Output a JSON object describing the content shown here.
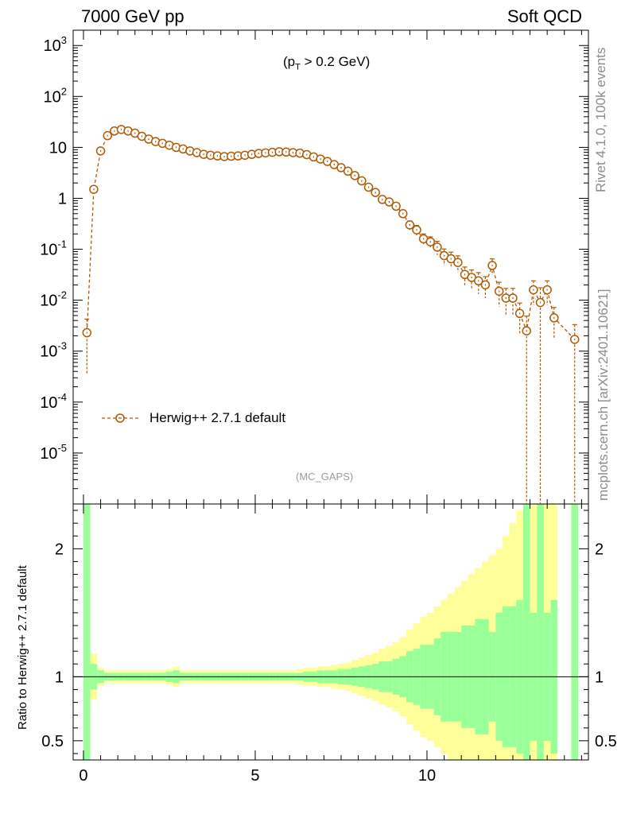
{
  "header": {
    "left": "7000 GeV pp",
    "right": "Soft QCD"
  },
  "side_labels": {
    "top": "Rivet 4.1.0,  100k events",
    "bottom": "mcplots.cern.ch [arXiv:2401.10621]"
  },
  "annotations": {
    "cut_prefix": "(p",
    "cut_sub": "T",
    "cut_suffix": " > 0.2 GeV)",
    "analysis_tag": "(MC_GAPS)"
  },
  "colors": {
    "mc": "#b35900",
    "band_outer": "#ffff99",
    "band_inner": "#99ff99"
  },
  "chart_data": [
    {
      "type": "line",
      "panel": "main",
      "xlabel": "",
      "ylabel": "",
      "xlim": [
        -0.3,
        14.7
      ],
      "ylim_log": [
        -6,
        3.3
      ],
      "ytick_labels": {
        "3": "10^3",
        "2": "10^2",
        "1": "10",
        "0": "1",
        "-1": "10^-1",
        "-2": "10^-2",
        "-3": "10^-3",
        "-4": "10^-4",
        "-5": "10^-5"
      },
      "legend_position": "bottom-left",
      "series": [
        {
          "name": "Herwig++ 2.7.1 default",
          "style": "dashed, open circles, error bars",
          "x": [
            0.1,
            0.3,
            0.5,
            0.7,
            0.9,
            1.1,
            1.3,
            1.5,
            1.7,
            1.9,
            2.1,
            2.3,
            2.5,
            2.7,
            2.9,
            3.1,
            3.3,
            3.5,
            3.7,
            3.9,
            4.1,
            4.3,
            4.5,
            4.7,
            4.9,
            5.1,
            5.3,
            5.5,
            5.7,
            5.9,
            6.1,
            6.3,
            6.5,
            6.7,
            6.9,
            7.1,
            7.3,
            7.5,
            7.7,
            7.9,
            8.1,
            8.3,
            8.5,
            8.7,
            8.9,
            9.1,
            9.3,
            9.5,
            9.7,
            9.9,
            10.1,
            10.3,
            10.5,
            10.7,
            10.9,
            11.1,
            11.3,
            11.5,
            11.7,
            11.9,
            12.1,
            12.3,
            12.5,
            12.7,
            12.9,
            13.1,
            13.3,
            13.5,
            13.7,
            14.3
          ],
          "values": [
            0.0023,
            1.5,
            8.5,
            17,
            21,
            22.5,
            21,
            19,
            16.5,
            14.5,
            13,
            12,
            11,
            10,
            9.3,
            8.5,
            7.9,
            7.3,
            7.0,
            6.8,
            6.6,
            6.7,
            6.8,
            7.0,
            7.3,
            7.6,
            7.8,
            8.0,
            8.2,
            8.1,
            7.9,
            7.7,
            7.2,
            6.5,
            5.9,
            5.3,
            4.6,
            4.0,
            3.4,
            2.8,
            2.2,
            1.65,
            1.3,
            0.95,
            0.85,
            0.7,
            0.5,
            0.3,
            0.24,
            0.16,
            0.14,
            0.11,
            0.075,
            0.065,
            0.055,
            0.032,
            0.028,
            0.024,
            0.02,
            0.048,
            0.015,
            0.011,
            0.011,
            0.0055,
            0.0025,
            0.016,
            0.009,
            0.016,
            0.0045,
            0.0017
          ],
          "rel_errors": [
            0.85,
            0.1,
            0.05,
            0.03,
            0.03,
            0.03,
            0.03,
            0.03,
            0.03,
            0.03,
            0.03,
            0.03,
            0.03,
            0.03,
            0.03,
            0.03,
            0.03,
            0.03,
            0.03,
            0.03,
            0.03,
            0.03,
            0.03,
            0.03,
            0.03,
            0.03,
            0.03,
            0.03,
            0.03,
            0.03,
            0.03,
            0.03,
            0.04,
            0.04,
            0.05,
            0.05,
            0.05,
            0.06,
            0.06,
            0.07,
            0.08,
            0.09,
            0.1,
            0.12,
            0.12,
            0.14,
            0.16,
            0.2,
            0.22,
            0.25,
            0.25,
            0.3,
            0.35,
            0.35,
            0.35,
            0.4,
            0.4,
            0.45,
            0.45,
            0.35,
            0.5,
            0.55,
            0.55,
            0.6,
            0.95,
            0.5,
            0.95,
            0.5,
            0.6,
            0.95
          ]
        }
      ]
    },
    {
      "type": "bar",
      "panel": "ratio",
      "ylabel": "Ratio to Herwig++ 2.7.1 default",
      "xlim": [
        -0.3,
        14.7
      ],
      "ylim": [
        0.35,
        2.35
      ],
      "ytick_labels": [
        "0.5",
        "1",
        "2"
      ],
      "ytick_values": [
        0.5,
        1,
        2
      ],
      "xtick_labels": [
        "0",
        "5",
        "10"
      ],
      "xtick_values": [
        0,
        5,
        10
      ],
      "reference_line": 1,
      "bin_width": 0.2,
      "x": [
        0.1,
        0.3,
        0.5,
        0.7,
        0.9,
        1.1,
        1.3,
        1.5,
        1.7,
        1.9,
        2.1,
        2.3,
        2.5,
        2.7,
        2.9,
        3.1,
        3.3,
        3.5,
        3.7,
        3.9,
        4.1,
        4.3,
        4.5,
        4.7,
        4.9,
        5.1,
        5.3,
        5.5,
        5.7,
        5.9,
        6.1,
        6.3,
        6.5,
        6.7,
        6.9,
        7.1,
        7.3,
        7.5,
        7.7,
        7.9,
        8.1,
        8.3,
        8.5,
        8.7,
        8.9,
        9.1,
        9.3,
        9.5,
        9.7,
        9.9,
        10.1,
        10.3,
        10.5,
        10.7,
        10.9,
        11.1,
        11.3,
        11.5,
        11.7,
        11.9,
        12.1,
        12.3,
        12.5,
        12.7,
        12.9,
        13.1,
        13.3,
        13.5,
        13.7,
        14.3
      ],
      "band_inner": [
        2.0,
        0.1,
        0.05,
        0.03,
        0.03,
        0.03,
        0.03,
        0.03,
        0.03,
        0.03,
        0.03,
        0.03,
        0.04,
        0.05,
        0.03,
        0.03,
        0.03,
        0.03,
        0.03,
        0.03,
        0.03,
        0.03,
        0.03,
        0.03,
        0.03,
        0.03,
        0.03,
        0.03,
        0.03,
        0.03,
        0.03,
        0.03,
        0.04,
        0.04,
        0.05,
        0.05,
        0.05,
        0.06,
        0.06,
        0.07,
        0.08,
        0.09,
        0.1,
        0.12,
        0.12,
        0.14,
        0.16,
        0.2,
        0.22,
        0.25,
        0.25,
        0.3,
        0.35,
        0.35,
        0.35,
        0.4,
        0.4,
        0.45,
        0.45,
        0.35,
        0.5,
        0.55,
        0.55,
        0.6,
        2.0,
        0.5,
        2.0,
        0.5,
        0.6,
        2.0
      ],
      "band_outer": [
        2.0,
        0.18,
        0.07,
        0.05,
        0.05,
        0.05,
        0.05,
        0.05,
        0.05,
        0.05,
        0.05,
        0.05,
        0.06,
        0.08,
        0.05,
        0.05,
        0.05,
        0.05,
        0.05,
        0.05,
        0.05,
        0.05,
        0.05,
        0.05,
        0.05,
        0.05,
        0.05,
        0.05,
        0.05,
        0.05,
        0.05,
        0.06,
        0.07,
        0.07,
        0.08,
        0.08,
        0.09,
        0.1,
        0.11,
        0.13,
        0.15,
        0.17,
        0.19,
        0.22,
        0.24,
        0.27,
        0.31,
        0.37,
        0.42,
        0.47,
        0.5,
        0.55,
        0.6,
        0.65,
        0.7,
        0.75,
        0.8,
        0.85,
        0.9,
        0.95,
        1.0,
        1.1,
        1.2,
        1.3,
        2.0,
        1.5,
        2.0,
        1.5,
        1.4,
        2.0
      ]
    }
  ]
}
